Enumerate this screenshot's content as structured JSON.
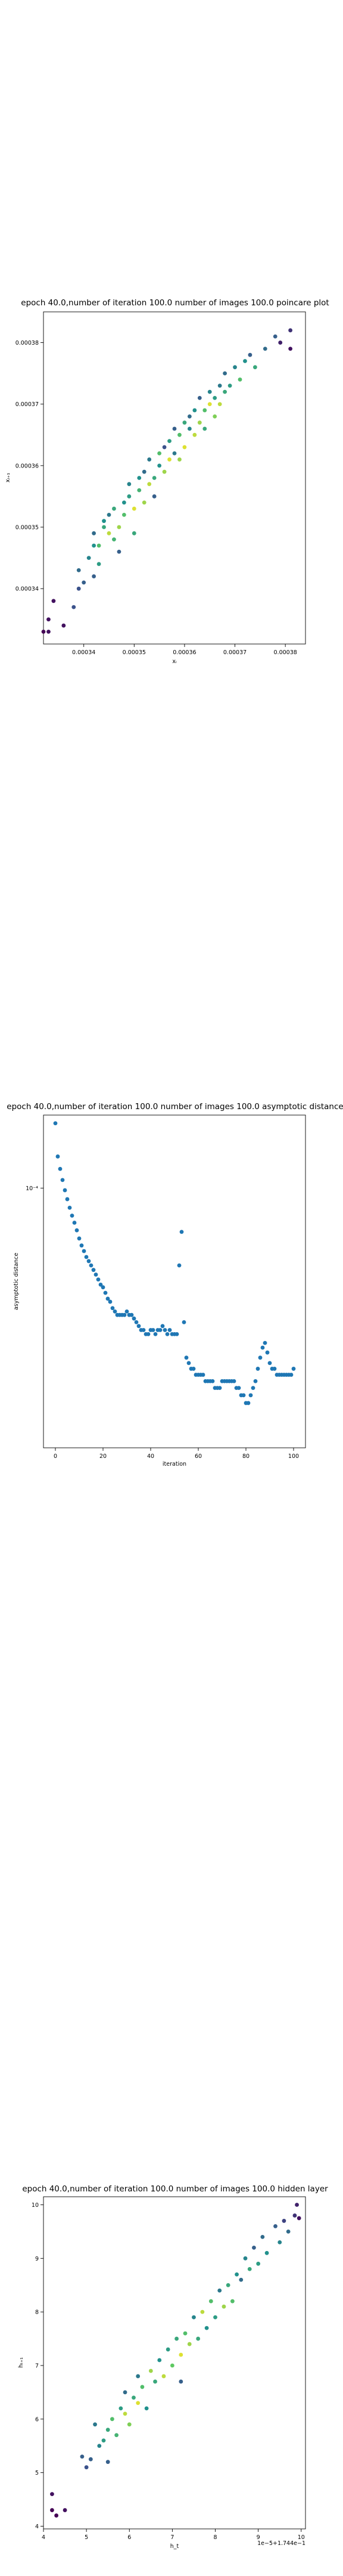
{
  "chart_data": [
    {
      "type": "scatter",
      "title": "epoch 40.0,number of iteration 100.0 number of images 100.0 poincare plot",
      "xlabel": "xᵢ",
      "ylabel": "xᵢ₊₁",
      "xticks": [
        "0.00034",
        "0.00035",
        "0.00036",
        "0.00037",
        "0.00038"
      ],
      "yticks": [
        "0.00034",
        "0.00035",
        "0.00036",
        "0.00037",
        "0.00038"
      ],
      "xlim": [
        0.000332,
        0.000384
      ],
      "ylim": [
        0.000331,
        0.000385
      ],
      "colormap": [
        "#440154",
        "#3b528b",
        "#21918c",
        "#5ec962",
        "#fde725"
      ],
      "points": [
        [
          0.000332,
          0.000333,
          0.0
        ],
        [
          0.000333,
          0.000335,
          0.05
        ],
        [
          0.000333,
          0.000333,
          0.05
        ],
        [
          0.000334,
          0.000338,
          0.05
        ],
        [
          0.000336,
          0.000334,
          0.05
        ],
        [
          0.000338,
          0.000337,
          0.25
        ],
        [
          0.000339,
          0.00034,
          0.25
        ],
        [
          0.000339,
          0.000343,
          0.35
        ],
        [
          0.00034,
          0.000341,
          0.3
        ],
        [
          0.000341,
          0.000345,
          0.45
        ],
        [
          0.000342,
          0.000342,
          0.3
        ],
        [
          0.000342,
          0.000347,
          0.5
        ],
        [
          0.000342,
          0.000349,
          0.35
        ],
        [
          0.000343,
          0.000344,
          0.55
        ],
        [
          0.000343,
          0.000347,
          0.7
        ],
        [
          0.000344,
          0.000351,
          0.5
        ],
        [
          0.000344,
          0.00035,
          0.6
        ],
        [
          0.000345,
          0.000349,
          0.9
        ],
        [
          0.000345,
          0.000352,
          0.4
        ],
        [
          0.000346,
          0.000348,
          0.65
        ],
        [
          0.000346,
          0.000353,
          0.6
        ],
        [
          0.000347,
          0.00035,
          0.85
        ],
        [
          0.000347,
          0.000346,
          0.3
        ],
        [
          0.000348,
          0.000354,
          0.5
        ],
        [
          0.000348,
          0.000352,
          0.7
        ],
        [
          0.000349,
          0.000355,
          0.55
        ],
        [
          0.000349,
          0.000357,
          0.45
        ],
        [
          0.00035,
          0.000353,
          0.95
        ],
        [
          0.00035,
          0.000349,
          0.6
        ],
        [
          0.000351,
          0.000356,
          0.65
        ],
        [
          0.000351,
          0.000358,
          0.5
        ],
        [
          0.000352,
          0.000354,
          0.85
        ],
        [
          0.000352,
          0.000359,
          0.35
        ],
        [
          0.000353,
          0.000357,
          0.9
        ],
        [
          0.000353,
          0.000361,
          0.4
        ],
        [
          0.000354,
          0.000358,
          0.6
        ],
        [
          0.000354,
          0.000355,
          0.3
        ],
        [
          0.000355,
          0.00036,
          0.5
        ],
        [
          0.000355,
          0.000362,
          0.7
        ],
        [
          0.000356,
          0.000359,
          0.85
        ],
        [
          0.000356,
          0.000363,
          0.25
        ],
        [
          0.000357,
          0.000361,
          0.95
        ],
        [
          0.000357,
          0.000364,
          0.55
        ],
        [
          0.000358,
          0.000366,
          0.3
        ],
        [
          0.000358,
          0.000362,
          0.4
        ],
        [
          0.000359,
          0.000365,
          0.7
        ],
        [
          0.000359,
          0.000361,
          0.85
        ],
        [
          0.00036,
          0.000367,
          0.6
        ],
        [
          0.00036,
          0.000363,
          0.95
        ],
        [
          0.000361,
          0.000366,
          0.45
        ],
        [
          0.000361,
          0.000368,
          0.35
        ],
        [
          0.000362,
          0.000365,
          0.9
        ],
        [
          0.000362,
          0.000369,
          0.5
        ],
        [
          0.000363,
          0.000367,
          0.85
        ],
        [
          0.000363,
          0.000371,
          0.3
        ],
        [
          0.000364,
          0.000369,
          0.7
        ],
        [
          0.000364,
          0.000366,
          0.6
        ],
        [
          0.000365,
          0.00037,
          0.95
        ],
        [
          0.000365,
          0.000372,
          0.45
        ],
        [
          0.000366,
          0.000371,
          0.55
        ],
        [
          0.000366,
          0.000368,
          0.8
        ],
        [
          0.000367,
          0.000373,
          0.4
        ],
        [
          0.000367,
          0.00037,
          0.9
        ],
        [
          0.000368,
          0.000372,
          0.6
        ],
        [
          0.000368,
          0.000375,
          0.35
        ],
        [
          0.000369,
          0.000373,
          0.55
        ],
        [
          0.00037,
          0.000376,
          0.45
        ],
        [
          0.000371,
          0.000374,
          0.7
        ],
        [
          0.000372,
          0.000377,
          0.5
        ],
        [
          0.000373,
          0.000378,
          0.3
        ],
        [
          0.000374,
          0.000376,
          0.6
        ],
        [
          0.000376,
          0.000379,
          0.35
        ],
        [
          0.000378,
          0.000381,
          0.3
        ],
        [
          0.000379,
          0.00038,
          0.1
        ],
        [
          0.000381,
          0.000382,
          0.15
        ],
        [
          0.000381,
          0.000379,
          0.05
        ]
      ]
    },
    {
      "type": "scatter",
      "title": "epoch 40.0,number of iteration 100.0  number of images 100.0 asymptotic distance",
      "xlabel": "iteration",
      "ylabel": "asymptotic distance",
      "xticks": [
        "0",
        "20",
        "40",
        "60",
        "80",
        "100"
      ],
      "ytick_label": "10⁻⁴",
      "yscale": "log",
      "xlim": [
        -5,
        105
      ],
      "ylim": [
        8.5e-06,
        0.0002
      ],
      "color": "#1f77b4",
      "x": [
        0,
        1,
        2,
        3,
        4,
        5,
        6,
        7,
        8,
        9,
        10,
        11,
        12,
        13,
        14,
        15,
        16,
        17,
        18,
        19,
        20,
        21,
        22,
        23,
        24,
        25,
        26,
        27,
        28,
        29,
        30,
        31,
        32,
        33,
        34,
        35,
        36,
        37,
        38,
        39,
        40,
        41,
        42,
        43,
        44,
        45,
        46,
        47,
        48,
        49,
        50,
        51,
        52,
        53,
        54,
        55,
        56,
        57,
        58,
        59,
        60,
        61,
        62,
        63,
        64,
        65,
        66,
        67,
        68,
        69,
        70,
        71,
        72,
        73,
        74,
        75,
        76,
        77,
        78,
        79,
        80,
        81,
        82,
        83,
        84,
        85,
        86,
        87,
        88,
        89,
        90,
        91,
        92,
        93,
        94,
        95,
        96,
        97,
        98,
        99,
        100
      ],
      "y": [
        0.000185,
        0.000135,
        0.00012,
        0.000108,
        9.8e-05,
        9e-05,
        8.3e-05,
        7.7e-05,
        7.2e-05,
        6.7e-05,
        6.2e-05,
        5.8e-05,
        5.5e-05,
        5.2e-05,
        5e-05,
        4.8e-05,
        4.6e-05,
        4.4e-05,
        4.2e-05,
        4e-05,
        3.9e-05,
        3.7e-05,
        3.5e-05,
        3.4e-05,
        3.2e-05,
        3.1e-05,
        3e-05,
        3e-05,
        3e-05,
        3e-05,
        3.1e-05,
        3e-05,
        3e-05,
        2.9e-05,
        2.8e-05,
        2.7e-05,
        2.6e-05,
        2.6e-05,
        2.5e-05,
        2.5e-05,
        2.6e-05,
        2.6e-05,
        2.5e-05,
        2.6e-05,
        2.6e-05,
        2.7e-05,
        2.6e-05,
        2.5e-05,
        2.6e-05,
        2.5e-05,
        2.5e-05,
        2.5e-05,
        4.8e-05,
        6.6e-05,
        2.8e-05,
        2e-05,
        1.9e-05,
        1.8e-05,
        1.8e-05,
        1.7e-05,
        1.7e-05,
        1.7e-05,
        1.7e-05,
        1.6e-05,
        1.6e-05,
        1.6e-05,
        1.6e-05,
        1.5e-05,
        1.5e-05,
        1.5e-05,
        1.6e-05,
        1.6e-05,
        1.6e-05,
        1.6e-05,
        1.6e-05,
        1.6e-05,
        1.5e-05,
        1.5e-05,
        1.4e-05,
        1.4e-05,
        1.3e-05,
        1.3e-05,
        1.4e-05,
        1.5e-05,
        1.6e-05,
        1.8e-05,
        2e-05,
        2.2e-05,
        2.3e-05,
        2.1e-05,
        1.9e-05,
        1.8e-05,
        1.8e-05,
        1.7e-05,
        1.7e-05,
        1.7e-05,
        1.7e-05,
        1.7e-05,
        1.7e-05,
        1.7e-05,
        1.8e-05
      ]
    },
    {
      "type": "scatter",
      "title": "epoch 40.0,number of iteration 100.0  number of images 100.0 hidden layer",
      "xlabel": "h_t",
      "ylabel": "hₜ₊₁",
      "offset_label": "1e−5+1.744e−1",
      "xticks": [
        "4",
        "5",
        "6",
        "7",
        "8",
        "9",
        "10"
      ],
      "yticks": [
        "4",
        "5",
        "6",
        "7",
        "8",
        "9",
        "10"
      ],
      "xlim": [
        4.0,
        10.1
      ],
      "ylim": [
        3.95,
        10.15
      ],
      "colormap": [
        "#440154",
        "#3b528b",
        "#21918c",
        "#5ec962",
        "#fde725"
      ],
      "points": [
        [
          4.2,
          4.3,
          0.0
        ],
        [
          4.3,
          4.2,
          0.0
        ],
        [
          4.5,
          4.3,
          0.05
        ],
        [
          4.2,
          4.6,
          0.05
        ],
        [
          4.9,
          5.3,
          0.3
        ],
        [
          5.0,
          5.1,
          0.25
        ],
        [
          5.1,
          5.25,
          0.3
        ],
        [
          5.2,
          5.9,
          0.4
        ],
        [
          5.3,
          5.5,
          0.45
        ],
        [
          5.4,
          5.6,
          0.55
        ],
        [
          5.5,
          5.8,
          0.6
        ],
        [
          5.5,
          5.2,
          0.3
        ],
        [
          5.6,
          6.0,
          0.7
        ],
        [
          5.7,
          5.7,
          0.65
        ],
        [
          5.8,
          6.2,
          0.55
        ],
        [
          5.9,
          6.1,
          0.9
        ],
        [
          5.9,
          6.5,
          0.35
        ],
        [
          6.0,
          5.9,
          0.8
        ],
        [
          6.1,
          6.4,
          0.6
        ],
        [
          6.2,
          6.3,
          0.95
        ],
        [
          6.2,
          6.8,
          0.4
        ],
        [
          6.3,
          6.6,
          0.7
        ],
        [
          6.4,
          6.2,
          0.5
        ],
        [
          6.5,
          6.9,
          0.85
        ],
        [
          6.6,
          6.7,
          0.6
        ],
        [
          6.7,
          7.1,
          0.5
        ],
        [
          6.8,
          6.8,
          0.9
        ],
        [
          6.9,
          7.3,
          0.55
        ],
        [
          7.0,
          7.0,
          0.75
        ],
        [
          7.1,
          7.5,
          0.6
        ],
        [
          7.2,
          7.2,
          0.95
        ],
        [
          7.2,
          6.7,
          0.3
        ],
        [
          7.3,
          7.6,
          0.7
        ],
        [
          7.4,
          7.4,
          0.85
        ],
        [
          7.5,
          7.9,
          0.45
        ],
        [
          7.6,
          7.5,
          0.6
        ],
        [
          7.7,
          8.0,
          0.9
        ],
        [
          7.8,
          7.7,
          0.5
        ],
        [
          7.9,
          8.2,
          0.7
        ],
        [
          8.0,
          7.9,
          0.55
        ],
        [
          8.1,
          8.4,
          0.4
        ],
        [
          8.2,
          8.1,
          0.85
        ],
        [
          8.3,
          8.5,
          0.6
        ],
        [
          8.4,
          8.2,
          0.7
        ],
        [
          8.5,
          8.7,
          0.5
        ],
        [
          8.6,
          8.6,
          0.35
        ],
        [
          8.7,
          9.0,
          0.45
        ],
        [
          8.8,
          8.8,
          0.6
        ],
        [
          8.9,
          9.2,
          0.3
        ],
        [
          9.0,
          8.9,
          0.55
        ],
        [
          9.1,
          9.4,
          0.35
        ],
        [
          9.2,
          9.1,
          0.5
        ],
        [
          9.4,
          9.6,
          0.3
        ],
        [
          9.5,
          9.3,
          0.45
        ],
        [
          9.6,
          9.7,
          0.2
        ],
        [
          9.7,
          9.5,
          0.35
        ],
        [
          9.85,
          9.8,
          0.15
        ],
        [
          9.9,
          10.0,
          0.1
        ],
        [
          9.95,
          9.75,
          0.05
        ]
      ]
    }
  ]
}
